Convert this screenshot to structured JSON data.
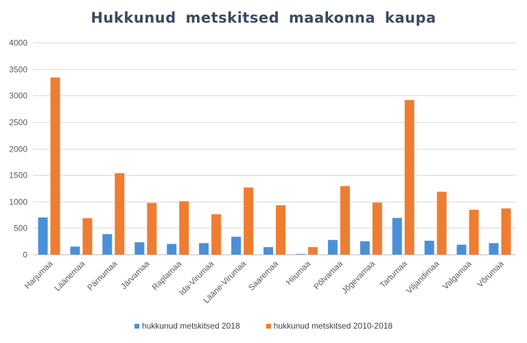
{
  "chart_data": {
    "type": "bar",
    "title": "Hukkunud metskitsed maakonna kaupa",
    "categories": [
      "Harjumaa",
      "Läänemaa",
      "Pärnumaa",
      "Järvamaa",
      "Raplamaa",
      "Ida-Virumaa",
      "Lääne-Virumaa",
      "Saaremaa",
      "Hiiumaa",
      "Põlvamaa",
      "Jõgevamaa",
      "Tartumaa",
      "Viljandimaa",
      "Valgamaa",
      "Võrumaa"
    ],
    "series": [
      {
        "name": "hukkunud metskitsed 2018",
        "color": "#4a90d9",
        "values": [
          700,
          150,
          385,
          230,
          200,
          215,
          335,
          140,
          10,
          275,
          250,
          690,
          260,
          185,
          215
        ]
      },
      {
        "name": "hukkunud metskitsed 2010-2018",
        "color": "#ef7d31",
        "values": [
          3340,
          685,
          1535,
          975,
          1005,
          760,
          1265,
          930,
          140,
          1290,
          980,
          2915,
          1185,
          845,
          870
        ]
      }
    ],
    "ylim": [
      0,
      4000
    ],
    "yticks": [
      0,
      500,
      1000,
      1500,
      2000,
      2500,
      3000,
      3500,
      4000
    ],
    "grid": true,
    "legend": "bottom"
  }
}
